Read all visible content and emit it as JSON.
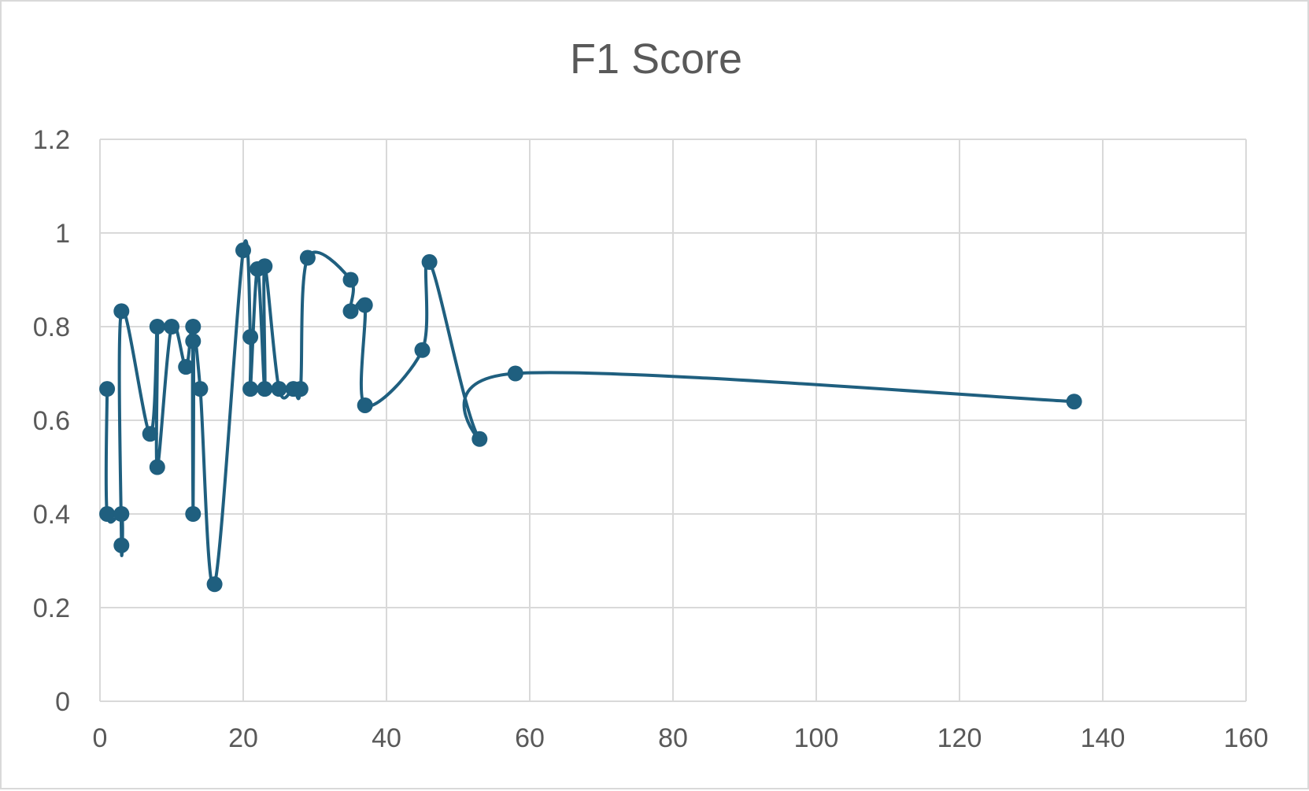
{
  "chart_data": {
    "type": "scatter",
    "title": "F1 Score",
    "xlabel": "",
    "ylabel": "",
    "xlim": [
      0,
      160
    ],
    "ylim": [
      0,
      1.2
    ],
    "x_ticks": [
      "0",
      "20",
      "40",
      "60",
      "80",
      "100",
      "120",
      "140",
      "160"
    ],
    "y_ticks": [
      "0",
      "0.2",
      "0.4",
      "0.6",
      "0.8",
      "1",
      "1.2"
    ],
    "grid": true,
    "legend": "none",
    "smoothed_line": true,
    "series": [
      {
        "color": "#1f5f7f",
        "points": [
          {
            "x": 1,
            "y": 0.667
          },
          {
            "x": 1,
            "y": 0.4
          },
          {
            "x": 3,
            "y": 0.4
          },
          {
            "x": 3,
            "y": 0.333
          },
          {
            "x": 3,
            "y": 0.833
          },
          {
            "x": 7,
            "y": 0.571
          },
          {
            "x": 8,
            "y": 0.8
          },
          {
            "x": 8,
            "y": 0.5
          },
          {
            "x": 10,
            "y": 0.8
          },
          {
            "x": 12,
            "y": 0.714
          },
          {
            "x": 13,
            "y": 0.8
          },
          {
            "x": 13,
            "y": 0.4
          },
          {
            "x": 13,
            "y": 0.769
          },
          {
            "x": 14,
            "y": 0.667
          },
          {
            "x": 16,
            "y": 0.25
          },
          {
            "x": 20,
            "y": 0.963
          },
          {
            "x": 21,
            "y": 0.778
          },
          {
            "x": 21,
            "y": 0.667
          },
          {
            "x": 22,
            "y": 0.923
          },
          {
            "x": 23,
            "y": 0.667
          },
          {
            "x": 23,
            "y": 0.929
          },
          {
            "x": 25,
            "y": 0.667
          },
          {
            "x": 27,
            "y": 0.667
          },
          {
            "x": 28,
            "y": 0.667
          },
          {
            "x": 29,
            "y": 0.947
          },
          {
            "x": 35,
            "y": 0.9
          },
          {
            "x": 35,
            "y": 0.833
          },
          {
            "x": 37,
            "y": 0.846
          },
          {
            "x": 37,
            "y": 0.632
          },
          {
            "x": 45,
            "y": 0.75
          },
          {
            "x": 46,
            "y": 0.938
          },
          {
            "x": 53,
            "y": 0.56
          },
          {
            "x": 58,
            "y": 0.7
          },
          {
            "x": 136,
            "y": 0.64
          }
        ]
      }
    ]
  }
}
